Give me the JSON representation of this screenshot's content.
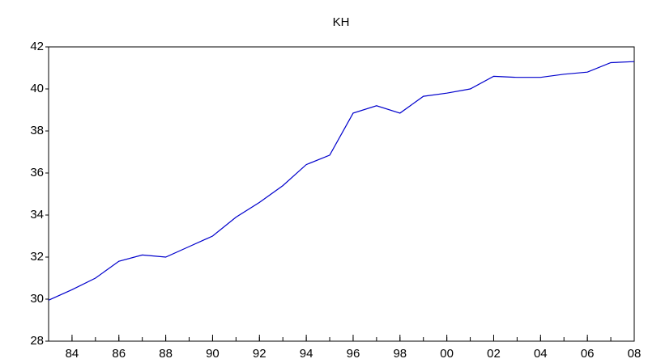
{
  "chart_data": {
    "type": "line",
    "title": "KH",
    "x": [
      1983,
      1984,
      1985,
      1986,
      1987,
      1988,
      1989,
      1990,
      1991,
      1992,
      1993,
      1994,
      1995,
      1996,
      1997,
      1998,
      1999,
      2000,
      2001,
      2002,
      2003,
      2004,
      2005,
      2006,
      2007,
      2008
    ],
    "series": [
      {
        "name": "KH",
        "color": "#0000cc",
        "values": [
          29.95,
          30.45,
          31.0,
          31.8,
          32.1,
          32.0,
          32.5,
          33.0,
          33.9,
          34.6,
          35.4,
          36.4,
          36.85,
          38.85,
          39.2,
          38.85,
          39.65,
          39.8,
          40.0,
          40.6,
          40.55,
          40.55,
          40.7,
          40.8,
          41.25,
          41.3
        ]
      }
    ],
    "xlim": [
      1983,
      2008
    ],
    "xticks": [
      {
        "value": 1984,
        "label": "84"
      },
      {
        "value": 1986,
        "label": "86"
      },
      {
        "value": 1988,
        "label": "88"
      },
      {
        "value": 1990,
        "label": "90"
      },
      {
        "value": 1992,
        "label": "92"
      },
      {
        "value": 1994,
        "label": "94"
      },
      {
        "value": 1996,
        "label": "96"
      },
      {
        "value": 1998,
        "label": "98"
      },
      {
        "value": 2000,
        "label": "00"
      },
      {
        "value": 2002,
        "label": "02"
      },
      {
        "value": 2004,
        "label": "04"
      },
      {
        "value": 2006,
        "label": "06"
      },
      {
        "value": 2008,
        "label": "08"
      }
    ],
    "ylim": [
      28,
      42
    ],
    "yticks": [
      28,
      30,
      32,
      34,
      36,
      38,
      40,
      42
    ],
    "grid": false
  }
}
